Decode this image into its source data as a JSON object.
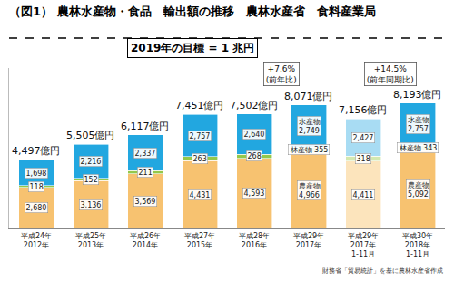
{
  "chart_data": {
    "type": "bar",
    "title": "（図1） 農林水産物・食品　輸出額の推移　農林水産省　食料産業局",
    "target": "2019年の目標 = 1 兆円",
    "source": "財務省「貿易統計」を基に農林水産省作成",
    "categories": [
      "平成24年\n2012年",
      "平成25年\n2013年",
      "平成26年\n2014年",
      "平成27年\n2015年",
      "平成28年\n2016年",
      "平成29年\n2017年",
      "平成29年\n2017年\n1-11月",
      "平成30年\n2018年\n1-11月"
    ],
    "series": [
      {
        "name": "農産物",
        "colors": [
          "#F7C270",
          "#F7C270",
          "#F7C270",
          "#F7C270",
          "#F7C270",
          "#F7C270",
          "#FCE4BC",
          "#F7C270"
        ],
        "values": [
          2680,
          3136,
          3569,
          4431,
          4593,
          4966,
          4411,
          5092
        ],
        "value_labels": [
          "2,680",
          "3,136",
          "3,569",
          "4,431",
          "4,593",
          "農産物\n4,966",
          "4,411",
          "農産物\n5,092"
        ]
      },
      {
        "name": "林産物",
        "colors": [
          "#93C84B",
          "#93C84B",
          "#93C84B",
          "#93C84B",
          "#93C84B",
          "#93C84B",
          "#D3E8B0",
          "#93C84B"
        ],
        "values": [
          118,
          152,
          211,
          263,
          268,
          355,
          318,
          343
        ],
        "value_labels": [
          "118",
          "152",
          "211",
          "263",
          "268",
          "林産物 355",
          "318",
          "林産物 343"
        ]
      },
      {
        "name": "水産物",
        "colors": [
          "#22A7E0",
          "#22A7E0",
          "#22A7E0",
          "#22A7E0",
          "#22A7E0",
          "#22A7E0",
          "#A8DCF3",
          "#22A7E0"
        ],
        "values": [
          1698,
          2216,
          2337,
          2757,
          2640,
          2749,
          2427,
          2757
        ],
        "value_labels": [
          "1,698",
          "2,216",
          "2,337",
          "2,757",
          "2,640",
          "水産物\n2,749",
          "2,427",
          "水産物\n2,757"
        ]
      }
    ],
    "total_labels": [
      "4,497億円",
      "5,505億円",
      "6,117億円",
      "7,451億円",
      "7,502億円",
      "8,071億円",
      "7,156億円",
      "8,193億円"
    ],
    "annotations": [
      {
        "text": "+7.6%\n(前年比)",
        "categories": [
          "平成28年\n2016年",
          "平成29年\n2017年"
        ]
      },
      {
        "text": "+14.5%\n(前年同期比)",
        "categories": [
          "平成29年\n2017年\n1-11月",
          "平成30年\n2018年\n1-11月"
        ]
      }
    ],
    "ylim": [
      0,
      10500
    ],
    "stacked": true,
    "data_labels": true,
    "tick_labels": "x",
    "grid": false
  }
}
